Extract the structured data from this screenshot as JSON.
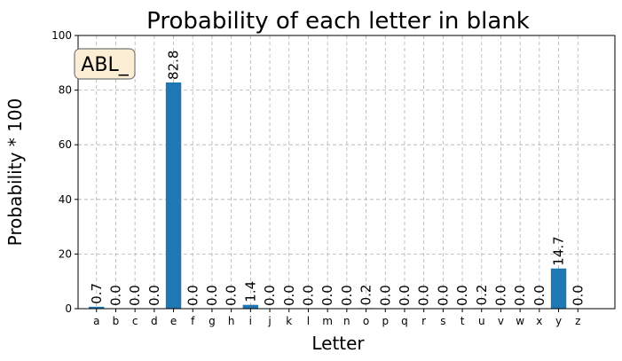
{
  "chart_data": {
    "type": "bar",
    "title": "Probability of each letter in blank",
    "xlabel": "Letter",
    "ylabel": "Probability * 100",
    "categories": [
      "a",
      "b",
      "c",
      "d",
      "e",
      "f",
      "g",
      "h",
      "i",
      "j",
      "k",
      "l",
      "m",
      "n",
      "o",
      "p",
      "q",
      "r",
      "s",
      "t",
      "u",
      "v",
      "w",
      "x",
      "y",
      "z"
    ],
    "values": [
      0.7,
      0.0,
      0.0,
      0.0,
      82.8,
      0.0,
      0.0,
      0.0,
      1.4,
      0.0,
      0.0,
      0.0,
      0.0,
      0.0,
      0.2,
      0.0,
      0.0,
      0.0,
      0.0,
      0.0,
      0.2,
      0.0,
      0.0,
      0.0,
      14.7,
      0.0
    ],
    "value_labels": [
      "0.7",
      "0.0",
      "0.0",
      "0.0",
      "82.8",
      "0.0",
      "0.0",
      "0.0",
      "1.4",
      "0.0",
      "0.0",
      "0.0",
      "0.0",
      "0.0",
      "0.2",
      "0.0",
      "0.0",
      "0.0",
      "0.0",
      "0.0",
      "0.2",
      "0.0",
      "0.0",
      "0.0",
      "14.7",
      "0.0"
    ],
    "ylim": [
      0,
      100
    ],
    "yticks": [
      0,
      20,
      40,
      60,
      80,
      100
    ],
    "grid": true,
    "bar_color": "#1f77b4",
    "annotation": {
      "text": "ABL_",
      "position": "top-left",
      "box_color": "#fbeed5",
      "border_color": "#777777"
    }
  }
}
